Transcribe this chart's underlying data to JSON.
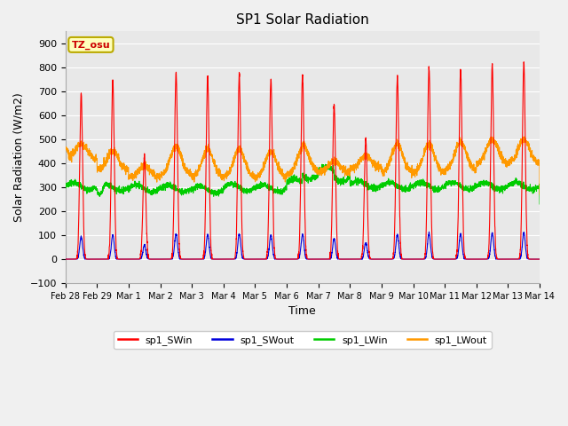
{
  "title": "SP1 Solar Radiation",
  "xlabel": "Time",
  "ylabel": "Solar Radiation (W/m2)",
  "ylim": [
    -100,
    950
  ],
  "yticks": [
    -100,
    0,
    100,
    200,
    300,
    400,
    500,
    600,
    700,
    800,
    900
  ],
  "fig_bg_color": "#f0f0f0",
  "plot_bg_color": "#e8e8e8",
  "colors": {
    "sp1_SWin": "#ff0000",
    "sp1_SWout": "#0000dd",
    "sp1_LWin": "#00cc00",
    "sp1_LWout": "#ff9900"
  },
  "tz_label": "TZ_osu",
  "tz_box_facecolor": "#ffffbb",
  "tz_text_color": "#cc0000",
  "tz_border_color": "#bbaa00",
  "day_labels": [
    "Feb 28",
    "Feb 29",
    "Mar 1",
    "Mar 2",
    "Mar 3",
    "Mar 4",
    "Mar 5",
    "Mar 6",
    "Mar 7",
    "Mar 8",
    "Mar 9",
    "Mar 10",
    "Mar 11",
    "Mar 12",
    "Mar 13",
    "Mar 14"
  ],
  "legend_entries": [
    "sp1_SWin",
    "sp1_SWout",
    "sp1_LWin",
    "sp1_LWout"
  ],
  "grid_color": "#ffffff",
  "linewidth": 0.8
}
